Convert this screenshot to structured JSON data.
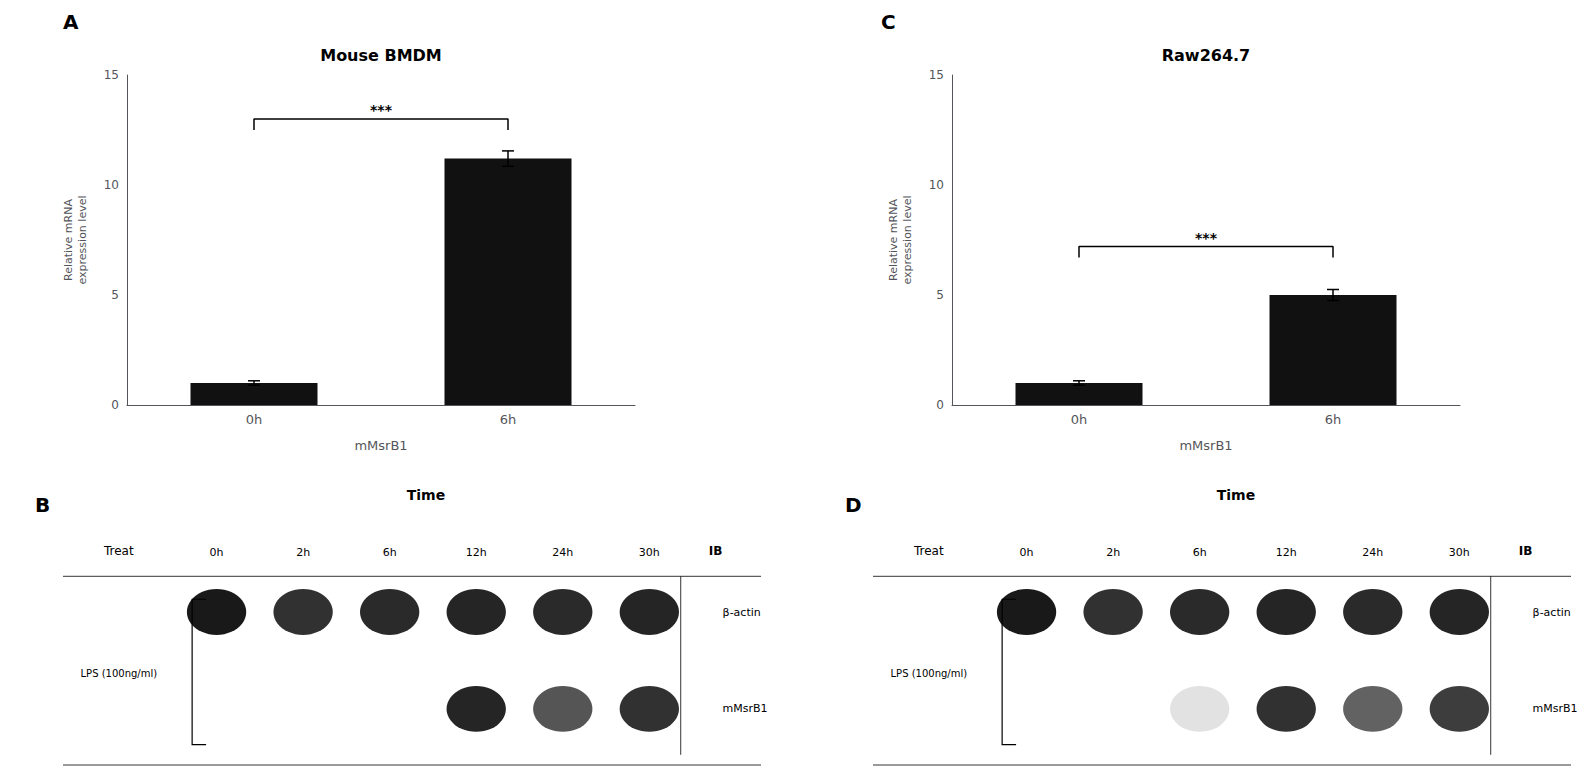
{
  "chart_data": [
    {
      "type": "bar",
      "panel": "A",
      "title": "Mouse BMDM",
      "categories": [
        "0h",
        "6h"
      ],
      "values": [
        1.0,
        11.2
      ],
      "errors": [
        0.1,
        0.35
      ],
      "color": "#111111",
      "ylabel": "Relative mRNA\nexpression level",
      "xlabel": "mMsrB1",
      "ylim": [
        0,
        15
      ],
      "yticks": [
        0,
        5,
        10,
        15
      ],
      "grid": false,
      "significance": {
        "text": "***",
        "y": 13.0,
        "bar_y": 12.5
      }
    },
    {
      "type": "heatmap",
      "panel": "B",
      "title": "Time",
      "categories": [
        "0h",
        "2h",
        "6h",
        "12h",
        "24h",
        "30h"
      ],
      "rows": [
        "β-actin",
        "mMsrB1"
      ],
      "values": [
        [
          0.95,
          0.85,
          0.88,
          0.9,
          0.88,
          0.9
        ],
        [
          0,
          0,
          0,
          0.9,
          0.7,
          0.85
        ]
      ],
      "color": "#000000",
      "treatment_header": "Treat",
      "row_header": "IB",
      "treatment": "LPS (100ng/ml)"
    },
    {
      "type": "bar",
      "panel": "C",
      "title": "Raw264.7",
      "categories": [
        "0h",
        "6h"
      ],
      "values": [
        1.0,
        5.0
      ],
      "errors": [
        0.1,
        0.25
      ],
      "color": "#111111",
      "ylabel": "Relative mRNA\nexpression level",
      "xlabel": "mMsrB1",
      "ylim": [
        0,
        15
      ],
      "yticks": [
        0,
        5,
        10,
        15
      ],
      "grid": false,
      "significance": {
        "text": "***",
        "y": 7.2,
        "bar_y": 6.7
      }
    },
    {
      "type": "heatmap",
      "panel": "D",
      "title": "Time",
      "categories": [
        "0h",
        "2h",
        "6h",
        "12h",
        "24h",
        "30h"
      ],
      "rows": [
        "β-actin",
        "mMsrB1"
      ],
      "values": [
        [
          0.95,
          0.85,
          0.88,
          0.9,
          0.88,
          0.9
        ],
        [
          0,
          0,
          0.12,
          0.85,
          0.65,
          0.8
        ]
      ],
      "color": "#000000",
      "treatment_header": "Treat",
      "row_header": "IB",
      "treatment": "LPS (100ng/ml)"
    }
  ]
}
